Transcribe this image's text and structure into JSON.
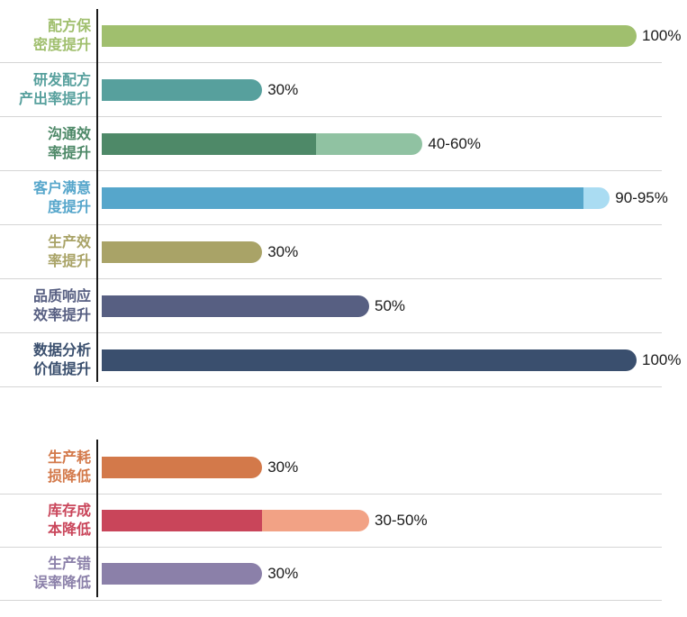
{
  "chart_data": {
    "type": "bar",
    "orientation": "horizontal",
    "unit": "percent",
    "axis_max": 100,
    "grid": "row-separators",
    "axis_color": "#1a1a1a",
    "separator_color": "#d5d5d5",
    "value_text_color": "#1a1a1a",
    "background_color": "#ffffff",
    "groups": [
      {
        "rows": [
          {
            "label": "配方保密度提升",
            "label_lines": [
              "配方保",
              "密度提升"
            ],
            "color": "#a0bf6e",
            "values": [
              100
            ],
            "segment_colors": [
              "#a0bf6e"
            ],
            "value_label": "100%"
          },
          {
            "label": "研发配方产出率提升",
            "label_lines": [
              "研发配方",
              "产出率提升"
            ],
            "color": "#57a09d",
            "values": [
              30
            ],
            "segment_colors": [
              "#57a09d"
            ],
            "value_label": "30%"
          },
          {
            "label": "沟通效率提升",
            "label_lines": [
              "沟通效",
              "率提升"
            ],
            "color": "#4e8968",
            "values": [
              40,
              60
            ],
            "segment_colors": [
              "#4e8968",
              "#90c2a2"
            ],
            "value_label": "40-60%"
          },
          {
            "label": "客户满意度提升",
            "label_lines": [
              "客户满意",
              "度提升"
            ],
            "color": "#56a6cb",
            "values": [
              90,
              95
            ],
            "segment_colors": [
              "#56a6cb",
              "#aadcf2"
            ],
            "value_label": "90-95%"
          },
          {
            "label": "生产效率提升",
            "label_lines": [
              "生产效",
              "率提升"
            ],
            "color": "#a9a367",
            "values": [
              30
            ],
            "segment_colors": [
              "#a9a367"
            ],
            "value_label": "30%"
          },
          {
            "label": "品质响应效率提升",
            "label_lines": [
              "品质响应",
              "效率提升"
            ],
            "color": "#575f82",
            "values": [
              50
            ],
            "segment_colors": [
              "#575f82"
            ],
            "value_label": "50%"
          },
          {
            "label": "数据分析价值提升",
            "label_lines": [
              "数据分析",
              "价值提升"
            ],
            "color": "#3a4f6e",
            "values": [
              100
            ],
            "segment_colors": [
              "#3a4f6e"
            ],
            "value_label": "100%"
          }
        ]
      },
      {
        "rows": [
          {
            "label": "生产耗损降低",
            "label_lines": [
              "生产耗",
              "损降低"
            ],
            "color": "#d3794a",
            "values": [
              30
            ],
            "segment_colors": [
              "#d3794a"
            ],
            "value_label": "30%"
          },
          {
            "label": "库存成本降低",
            "label_lines": [
              "库存成",
              "本降低"
            ],
            "color": "#c9455a",
            "values": [
              30,
              50
            ],
            "segment_colors": [
              "#c9455a",
              "#f2a285"
            ],
            "value_label": "30-50%"
          },
          {
            "label": "生产错误率降低",
            "label_lines": [
              "生产错",
              "误率降低"
            ],
            "color": "#8b80a9",
            "values": [
              30
            ],
            "segment_colors": [
              "#8b80a9"
            ],
            "value_label": "30%"
          }
        ]
      }
    ]
  }
}
